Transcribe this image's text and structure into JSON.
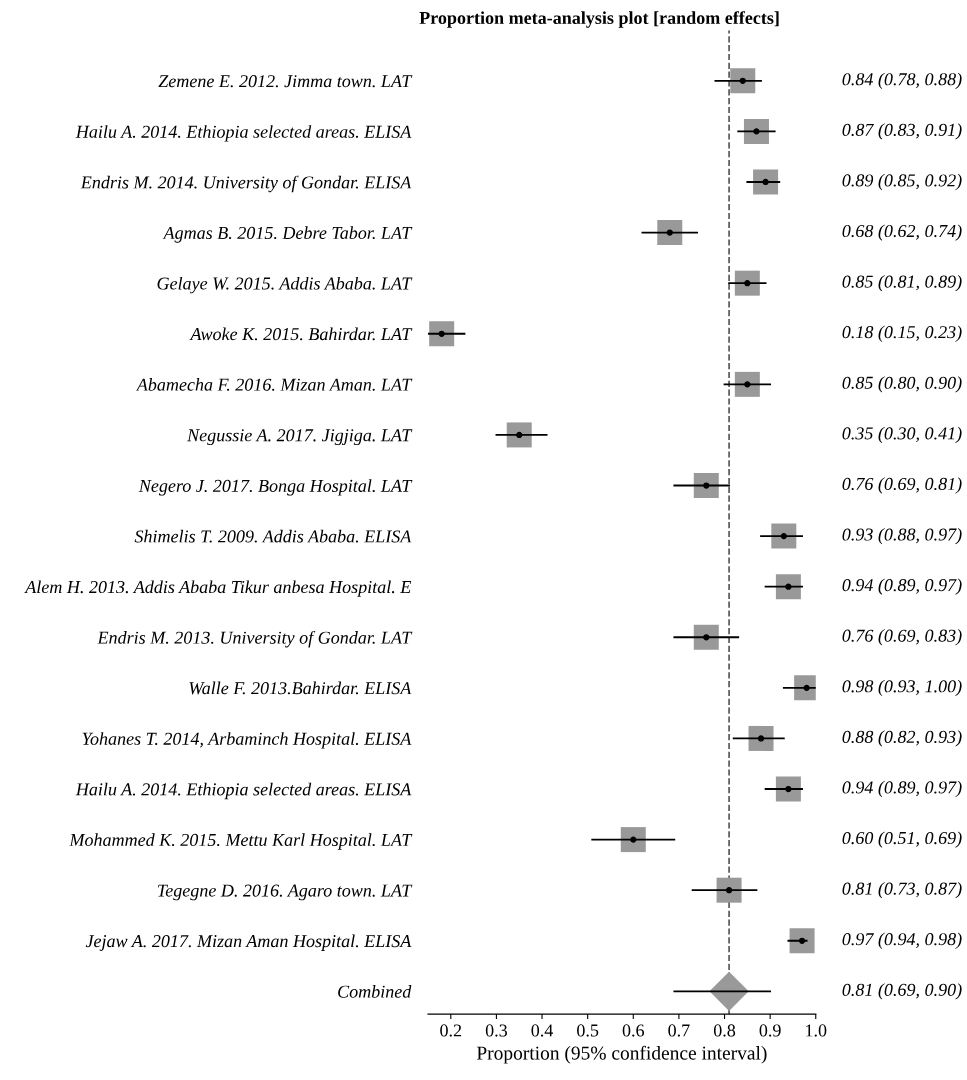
{
  "chart_data": {
    "type": "scatter",
    "orientation": "horizontal",
    "title": "Proportion meta-analysis plot [random effects]",
    "xlabel": "Proportion (95% confidence interval)",
    "categories": [
      "Zemene E. 2012. Jimma town. LAT",
      "Hailu A. 2014. Ethiopia selected areas. ELISA",
      "Endris M. 2014. University of Gondar. ELISA",
      "Agmas B. 2015. Debre Tabor. LAT",
      "Gelaye W. 2015. Addis Ababa. LAT",
      "Awoke K. 2015. Bahirdar. LAT",
      "Abamecha F. 2016. Mizan Aman. LAT",
      "Negussie A. 2017. Jigjiga. LAT",
      "Negero J. 2017. Bonga Hospital. LAT",
      "Shimelis T. 2009. Addis Ababa. ELISA",
      "Alem H. 2013. Addis Ababa Tikur anbesa Hospital. E",
      "Endris M. 2013. University of Gondar. LAT",
      "Walle F. 2013.Bahirdar. ELISA",
      "Yohanes T. 2014, Arbaminch Hospital. ELISA",
      "Hailu A. 2014. Ethiopia selected areas. ELISA",
      "Mohammed K. 2015. Mettu Karl Hospital. LAT",
      "Tegegne D. 2016. Agaro town. LAT",
      "Jejaw A. 2017. Mizan Aman Hospital. ELISA",
      "Combined"
    ],
    "series": [
      {
        "color": "#999999",
        "marker": "square",
        "values": [
          0.84,
          0.87,
          0.89,
          0.68,
          0.85,
          0.18,
          0.85,
          0.35,
          0.76,
          0.93,
          0.94,
          0.76,
          0.98,
          0.88,
          0.94,
          0.6,
          0.81,
          0.97,
          null
        ],
        "errors": [
          [
            0.78,
            0.88
          ],
          [
            0.83,
            0.91
          ],
          [
            0.85,
            0.92
          ],
          [
            0.62,
            0.74
          ],
          [
            0.81,
            0.89
          ],
          [
            0.15,
            0.23
          ],
          [
            0.8,
            0.9
          ],
          [
            0.3,
            0.41
          ],
          [
            0.69,
            0.81
          ],
          [
            0.88,
            0.97
          ],
          [
            0.89,
            0.97
          ],
          [
            0.69,
            0.83
          ],
          [
            0.93,
            1.0
          ],
          [
            0.82,
            0.93
          ],
          [
            0.89,
            0.97
          ],
          [
            0.51,
            0.69
          ],
          [
            0.73,
            0.87
          ],
          [
            0.94,
            0.98
          ],
          null
        ],
        "value_labels": [
          "0.84 (0.78, 0.88)",
          "0.87 (0.83, 0.91)",
          "0.89 (0.85, 0.92)",
          "0.68 (0.62, 0.74)",
          "0.85 (0.81, 0.89)",
          "0.18 (0.15, 0.23)",
          "0.85 (0.80, 0.90)",
          "0.35 (0.30, 0.41)",
          "0.76 (0.69, 0.81)",
          "0.93 (0.88, 0.97)",
          "0.94 (0.89, 0.97)",
          "0.76 (0.69, 0.83)",
          "0.98 (0.93, 1.00)",
          "0.88 (0.82, 0.93)",
          "0.94 (0.89, 0.97)",
          "0.60 (0.51, 0.69)",
          "0.81 (0.73, 0.87)",
          "0.97 (0.94, 0.98)",
          "0.81 (0.69, 0.90)"
        ]
      },
      {
        "color": "#999999",
        "marker": "diamond",
        "values": [
          null,
          null,
          null,
          null,
          null,
          null,
          null,
          null,
          null,
          null,
          null,
          null,
          null,
          null,
          null,
          null,
          null,
          null,
          0.81
        ],
        "errors": [
          null,
          null,
          null,
          null,
          null,
          null,
          null,
          null,
          null,
          null,
          null,
          null,
          null,
          null,
          null,
          null,
          null,
          null,
          [
            0.69,
            0.9
          ]
        ]
      }
    ],
    "xlim": [
      0.15,
      1.0
    ],
    "xticks": [
      0.2,
      0.3,
      0.4,
      0.5,
      0.6,
      0.7,
      0.8,
      0.9,
      {
        "value": 1.0,
        "label": "1.0"
      }
    ],
    "ref_lines": [
      {
        "axis": "x",
        "value": 0.81,
        "line_style": "dashed",
        "color": "#555555"
      }
    ],
    "grid": false,
    "legend": false
  }
}
